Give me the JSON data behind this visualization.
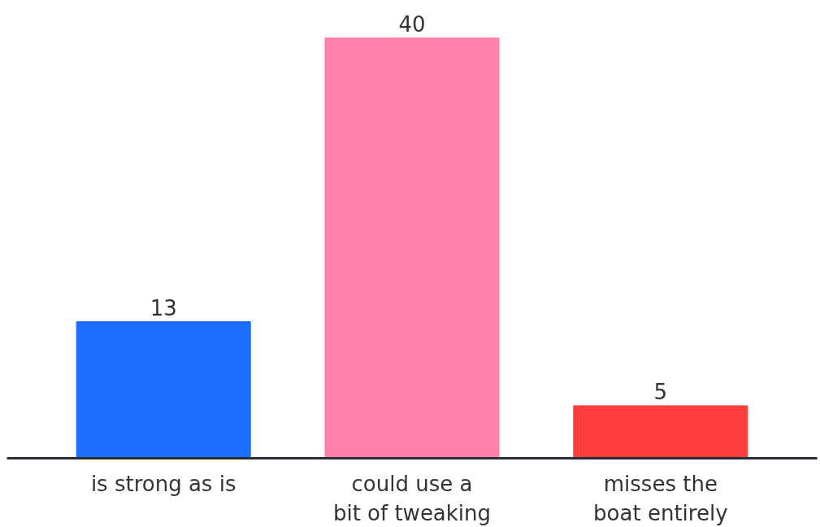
{
  "chart_data": {
    "type": "bar",
    "categories": [
      "is strong as is",
      "could use a bit of tweaking",
      "misses the boat entirely"
    ],
    "values": [
      13,
      40,
      5
    ],
    "colors": [
      "#1a6dff",
      "#ff80ab",
      "#ff3d3d"
    ],
    "data_labels": true,
    "tick_labels": "x"
  }
}
